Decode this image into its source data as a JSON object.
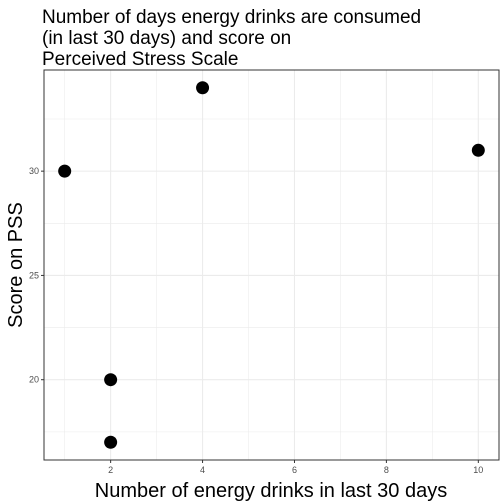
{
  "chart_data": {
    "type": "scatter",
    "title_lines": [
      "Number of days energy drinks are consumed",
      "(in last 30 days) and score on",
      "Perceived Stress Scale"
    ],
    "xlabel": "Number of energy drinks in last 30 days",
    "ylabel": "Score on PSS",
    "xlim": [
      0.55,
      10.45
    ],
    "ylim": [
      16.15,
      34.85
    ],
    "x_ticks": [
      2,
      4,
      6,
      8,
      10
    ],
    "y_ticks": [
      20,
      25,
      30
    ],
    "x_minor_ticks": [
      1,
      3,
      5,
      7,
      9
    ],
    "y_minor_ticks": [
      17.5,
      22.5,
      27.5,
      32.5
    ],
    "grid": true,
    "points": [
      {
        "x": 1,
        "y": 30
      },
      {
        "x": 2,
        "y": 17
      },
      {
        "x": 2,
        "y": 20
      },
      {
        "x": 4,
        "y": 34
      },
      {
        "x": 10,
        "y": 31
      }
    ],
    "colors": {
      "point": "#000000",
      "grid": "#ebebeb",
      "panel_border": "#333333",
      "tick_text": "#4d4d4d"
    }
  }
}
